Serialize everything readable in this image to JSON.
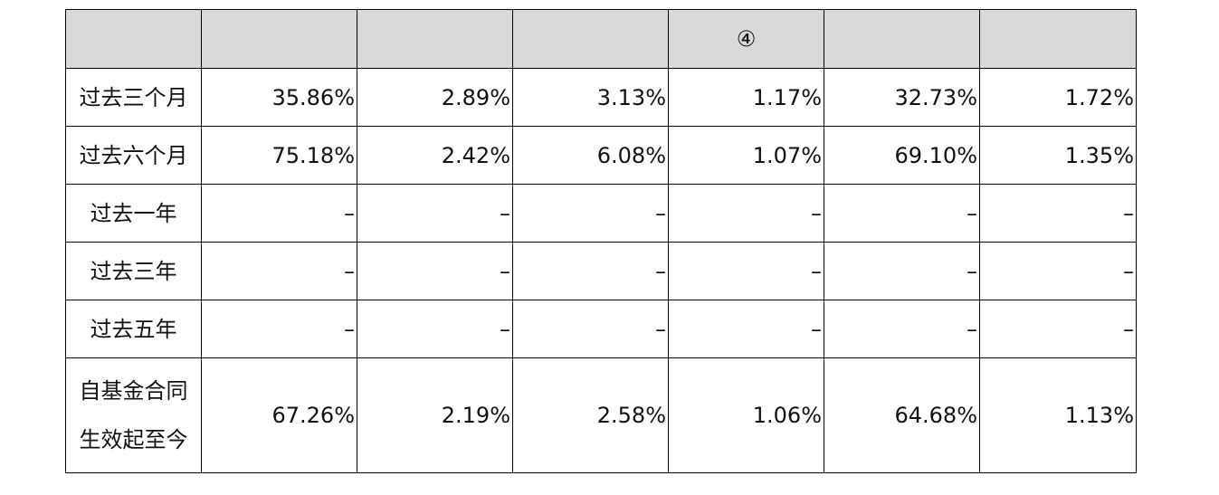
{
  "table": {
    "header_note": "④",
    "rows": [
      {
        "label": "过去三个月",
        "cells": [
          "35.86%",
          "2.89%",
          "3.13%",
          "1.17%",
          "32.73%",
          "1.72%"
        ]
      },
      {
        "label": "过去六个月",
        "cells": [
          "75.18%",
          "2.42%",
          "6.08%",
          "1.07%",
          "69.10%",
          "1.35%"
        ]
      },
      {
        "label": "过去一年",
        "cells": [
          "–",
          "–",
          "–",
          "–",
          "–",
          "–"
        ]
      },
      {
        "label": "过去三年",
        "cells": [
          "–",
          "–",
          "–",
          "–",
          "–",
          "–"
        ]
      },
      {
        "label": "过去五年",
        "cells": [
          "–",
          "–",
          "–",
          "–",
          "–",
          "–"
        ]
      },
      {
        "label": "自基金合同生效起至今",
        "cells": [
          "67.26%",
          "2.19%",
          "2.58%",
          "1.06%",
          "64.68%",
          "1.13%"
        ]
      }
    ]
  }
}
